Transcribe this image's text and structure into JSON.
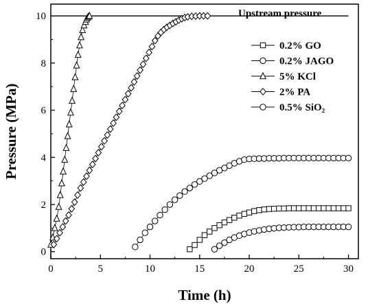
{
  "chart_data": {
    "type": "scatter",
    "xlabel": "Time (h)",
    "ylabel": "Pressure (MPa)",
    "xlim": [
      0,
      31
    ],
    "ylim": [
      -0.3,
      10.5
    ],
    "xticks": [
      "0",
      "5",
      "10",
      "15",
      "20",
      "25",
      "30"
    ],
    "yticks": [
      "0",
      "2",
      "4",
      "6",
      "8",
      "10"
    ],
    "reference_line": {
      "y": 10,
      "label": "Upstream pressure"
    },
    "grid": false,
    "legend_position": "right",
    "series": [
      {
        "name": "0.2% GO",
        "marker": "square",
        "points": [
          [
            14.0,
            0.1
          ],
          [
            14.5,
            0.28
          ],
          [
            15.0,
            0.5
          ],
          [
            15.5,
            0.7
          ],
          [
            16.0,
            0.85
          ],
          [
            16.5,
            1.0
          ],
          [
            17.0,
            1.12
          ],
          [
            17.5,
            1.24
          ],
          [
            18.0,
            1.34
          ],
          [
            18.5,
            1.44
          ],
          [
            19.0,
            1.53
          ],
          [
            19.5,
            1.6
          ],
          [
            20.0,
            1.66
          ],
          [
            20.5,
            1.72
          ],
          [
            21.0,
            1.76
          ],
          [
            21.5,
            1.79
          ],
          [
            22.0,
            1.81
          ],
          [
            22.5,
            1.82
          ],
          [
            23.0,
            1.83
          ],
          [
            23.5,
            1.83
          ],
          [
            24.0,
            1.84
          ],
          [
            24.5,
            1.84
          ],
          [
            25.0,
            1.84
          ],
          [
            25.5,
            1.84
          ],
          [
            26.0,
            1.84
          ],
          [
            26.5,
            1.84
          ],
          [
            27.0,
            1.84
          ],
          [
            27.5,
            1.84
          ],
          [
            28.0,
            1.84
          ],
          [
            28.5,
            1.84
          ],
          [
            29.0,
            1.84
          ],
          [
            29.5,
            1.84
          ],
          [
            30.0,
            1.84
          ]
        ]
      },
      {
        "name": "0.2% JAGO",
        "marker": "circle",
        "points": [
          [
            8.5,
            0.2
          ],
          [
            9.0,
            0.5
          ],
          [
            9.5,
            0.8
          ],
          [
            10.0,
            1.05
          ],
          [
            10.5,
            1.3
          ],
          [
            11.0,
            1.55
          ],
          [
            11.5,
            1.78
          ],
          [
            12.0,
            2.0
          ],
          [
            12.5,
            2.2
          ],
          [
            13.0,
            2.38
          ],
          [
            13.5,
            2.55
          ],
          [
            14.0,
            2.7
          ],
          [
            14.5,
            2.85
          ],
          [
            15.0,
            2.98
          ],
          [
            15.5,
            3.1
          ],
          [
            16.0,
            3.22
          ],
          [
            16.5,
            3.34
          ],
          [
            17.0,
            3.45
          ],
          [
            17.5,
            3.55
          ],
          [
            18.0,
            3.65
          ],
          [
            18.5,
            3.75
          ],
          [
            19.0,
            3.83
          ],
          [
            19.5,
            3.9
          ],
          [
            20.0,
            3.93
          ],
          [
            20.5,
            3.94
          ],
          [
            21.0,
            3.95
          ],
          [
            21.5,
            3.95
          ],
          [
            22.0,
            3.96
          ],
          [
            22.5,
            3.96
          ],
          [
            23.0,
            3.96
          ],
          [
            23.5,
            3.97
          ],
          [
            24.0,
            3.97
          ],
          [
            24.5,
            3.97
          ],
          [
            25.0,
            3.97
          ],
          [
            25.5,
            3.97
          ],
          [
            26.0,
            3.97
          ],
          [
            26.5,
            3.97
          ],
          [
            27.0,
            3.97
          ],
          [
            27.5,
            3.97
          ],
          [
            28.0,
            3.97
          ],
          [
            28.5,
            3.97
          ],
          [
            29.0,
            3.97
          ],
          [
            29.5,
            3.97
          ],
          [
            30.0,
            3.97
          ]
        ]
      },
      {
        "name": "5% KCl",
        "marker": "triangle",
        "points": [
          [
            0.0,
            0.3
          ],
          [
            0.2,
            0.6
          ],
          [
            0.4,
            1.0
          ],
          [
            0.6,
            1.4
          ],
          [
            0.8,
            1.9
          ],
          [
            0.95,
            2.4
          ],
          [
            1.1,
            2.9
          ],
          [
            1.25,
            3.4
          ],
          [
            1.4,
            3.9
          ],
          [
            1.55,
            4.4
          ],
          [
            1.7,
            4.9
          ],
          [
            1.85,
            5.4
          ],
          [
            2.0,
            5.9
          ],
          [
            2.15,
            6.4
          ],
          [
            2.3,
            6.9
          ],
          [
            2.45,
            7.4
          ],
          [
            2.6,
            7.9
          ],
          [
            2.75,
            8.35
          ],
          [
            2.9,
            8.75
          ],
          [
            3.05,
            9.1
          ],
          [
            3.2,
            9.4
          ],
          [
            3.35,
            9.6
          ],
          [
            3.5,
            9.75
          ],
          [
            3.6,
            9.85
          ],
          [
            3.7,
            9.92
          ],
          [
            3.8,
            9.97
          ],
          [
            3.9,
            10.0
          ]
        ]
      },
      {
        "name": "2% PA",
        "marker": "diamond",
        "points": [
          [
            0.3,
            0.3
          ],
          [
            0.6,
            0.55
          ],
          [
            0.9,
            0.8
          ],
          [
            1.2,
            1.05
          ],
          [
            1.5,
            1.3
          ],
          [
            1.8,
            1.55
          ],
          [
            2.1,
            1.82
          ],
          [
            2.4,
            2.1
          ],
          [
            2.7,
            2.4
          ],
          [
            3.0,
            2.7
          ],
          [
            3.3,
            2.95
          ],
          [
            3.6,
            3.2
          ],
          [
            3.9,
            3.45
          ],
          [
            4.2,
            3.7
          ],
          [
            4.5,
            3.95
          ],
          [
            4.8,
            4.2
          ],
          [
            5.1,
            4.45
          ],
          [
            5.4,
            4.7
          ],
          [
            5.7,
            4.95
          ],
          [
            6.0,
            5.2
          ],
          [
            6.3,
            5.45
          ],
          [
            6.6,
            5.7
          ],
          [
            6.9,
            5.95
          ],
          [
            7.2,
            6.2
          ],
          [
            7.5,
            6.45
          ],
          [
            7.8,
            6.7
          ],
          [
            8.1,
            6.95
          ],
          [
            8.4,
            7.2
          ],
          [
            8.7,
            7.45
          ],
          [
            9.0,
            7.7
          ],
          [
            9.3,
            7.95
          ],
          [
            9.6,
            8.2
          ],
          [
            9.9,
            8.45
          ],
          [
            10.2,
            8.7
          ],
          [
            10.5,
            8.95
          ],
          [
            10.8,
            9.15
          ],
          [
            11.1,
            9.3
          ],
          [
            11.4,
            9.42
          ],
          [
            11.7,
            9.52
          ],
          [
            12.0,
            9.6
          ],
          [
            12.3,
            9.68
          ],
          [
            12.6,
            9.75
          ],
          [
            12.9,
            9.82
          ],
          [
            13.2,
            9.88
          ],
          [
            13.5,
            9.93
          ],
          [
            13.8,
            9.96
          ],
          [
            14.2,
            9.98
          ],
          [
            14.6,
            9.99
          ],
          [
            15.0,
            10.0
          ],
          [
            15.4,
            10.0
          ],
          [
            15.8,
            10.0
          ]
        ]
      },
      {
        "name": "0.5% SiO₂",
        "marker": "circle",
        "points": [
          [
            16.5,
            0.1
          ],
          [
            17.0,
            0.25
          ],
          [
            17.5,
            0.38
          ],
          [
            18.0,
            0.5
          ],
          [
            18.5,
            0.6
          ],
          [
            19.0,
            0.68
          ],
          [
            19.5,
            0.75
          ],
          [
            20.0,
            0.81
          ],
          [
            20.5,
            0.86
          ],
          [
            21.0,
            0.9
          ],
          [
            21.5,
            0.94
          ],
          [
            22.0,
            0.97
          ],
          [
            22.5,
            0.99
          ],
          [
            23.0,
            1.01
          ],
          [
            23.5,
            1.02
          ],
          [
            24.0,
            1.03
          ],
          [
            24.5,
            1.04
          ],
          [
            25.0,
            1.04
          ],
          [
            25.5,
            1.05
          ],
          [
            26.0,
            1.05
          ],
          [
            26.5,
            1.05
          ],
          [
            27.0,
            1.05
          ],
          [
            27.5,
            1.05
          ],
          [
            28.0,
            1.05
          ],
          [
            28.5,
            1.05
          ],
          [
            29.0,
            1.05
          ],
          [
            29.5,
            1.05
          ],
          [
            30.0,
            1.05
          ]
        ]
      }
    ]
  }
}
